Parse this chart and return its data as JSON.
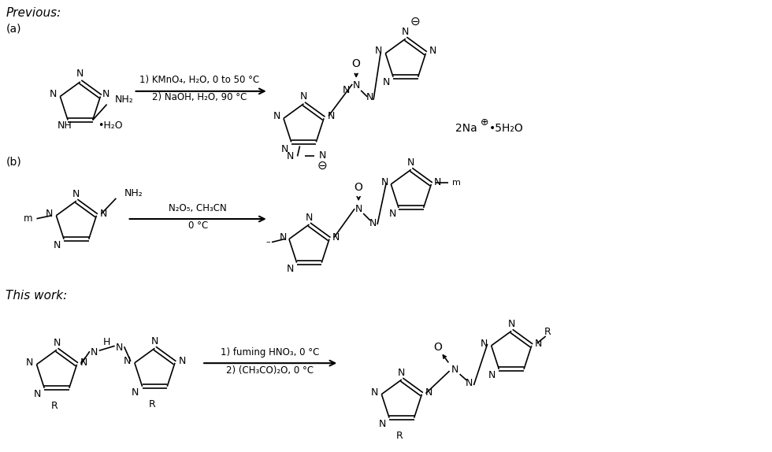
{
  "background_color": "#ffffff",
  "text_color": "#000000",
  "line_color": "#000000",
  "previous_label": "Previous:",
  "a_label": "(a)",
  "b_label": "(b)",
  "this_work_label": "This work:",
  "reagent_a": "1) KMnO₄, H₂O, 0 to 50 °C\n2) NaOH, H₂O, 90 °C",
  "reagent_b": "N₂O₅, CH₃CN\n0 °C",
  "reagent_c": "1) fuming HNO₃, 0 °C\n2) (CH₃CO)₂O, 0 °C"
}
